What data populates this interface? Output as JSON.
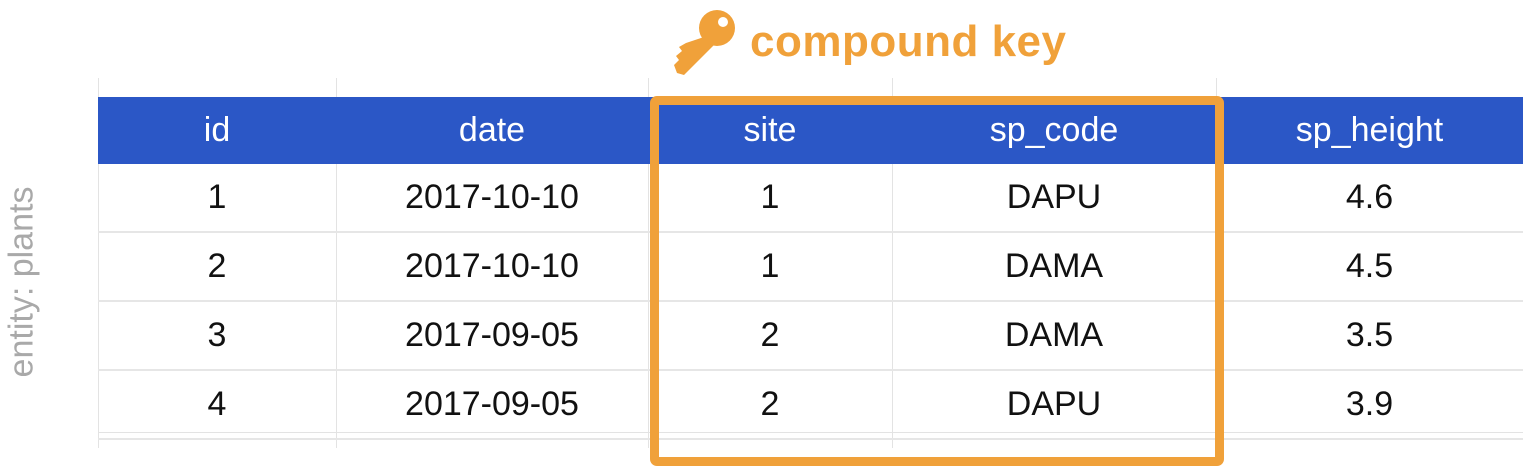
{
  "entity_label": "entity: plants",
  "key_label": "compound key",
  "key_icon": "key-icon",
  "colors": {
    "header_bg": "#2b57c6",
    "accent": "#f0a13a",
    "side_label": "#a9a9a9"
  },
  "table": {
    "columns": [
      "id",
      "date",
      "site",
      "sp_code",
      "sp_height"
    ],
    "rows": [
      [
        "1",
        "2017-10-10",
        "1",
        "DAPU",
        "4.6"
      ],
      [
        "2",
        "2017-10-10",
        "1",
        "DAMA",
        "4.5"
      ],
      [
        "3",
        "2017-09-05",
        "2",
        "DAMA",
        "3.5"
      ],
      [
        "4",
        "2017-09-05",
        "2",
        "DAPU",
        "3.9"
      ]
    ],
    "key_columns": [
      "site",
      "sp_code"
    ]
  }
}
